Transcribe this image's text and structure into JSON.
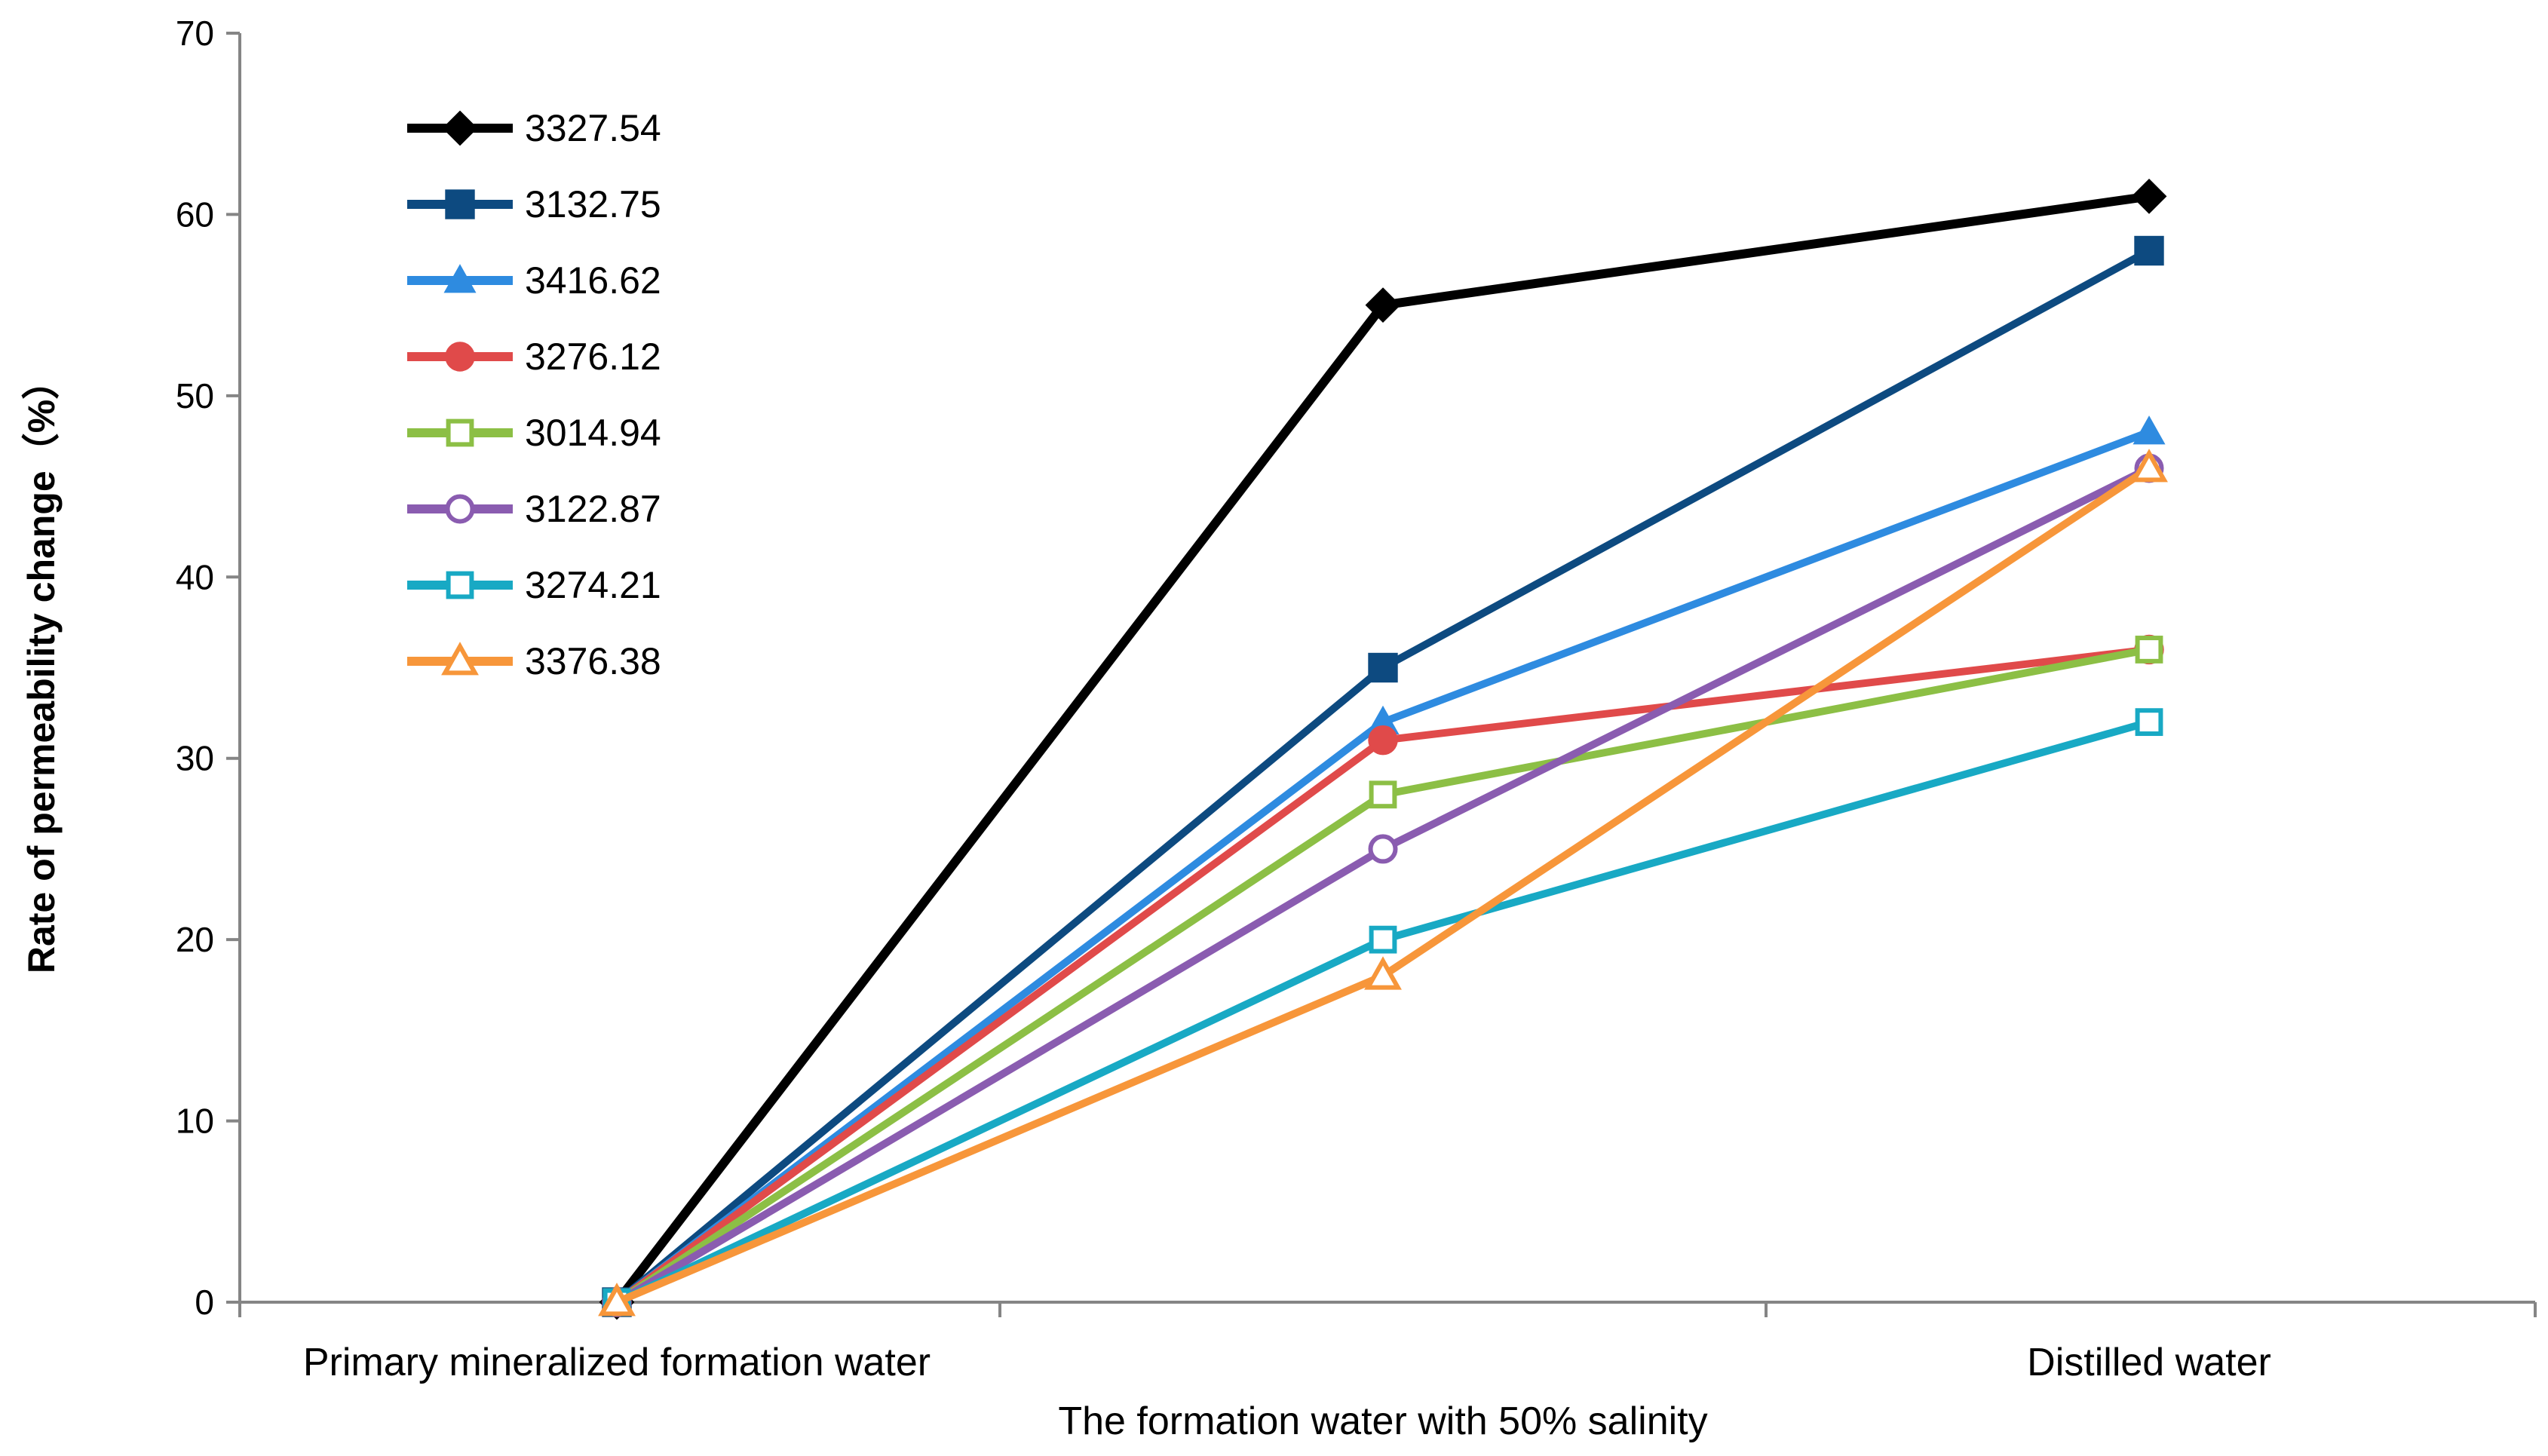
{
  "chart_data": {
    "type": "line",
    "title": "",
    "categories": [
      "Primary mineralized formation water",
      "The formation water with 50% salinity",
      "Distilled water"
    ],
    "xlabel": "The formation water with 50% salinity",
    "ylabel": "Rate of permeability change（%）",
    "ylim": [
      0,
      70
    ],
    "yticks": [
      "0",
      "10",
      "20",
      "30",
      "40",
      "50",
      "60",
      "70"
    ],
    "grid": false,
    "legend_position": "top-left",
    "series": [
      {
        "name": "3327.54",
        "values": [
          0,
          55,
          61
        ],
        "color": "#000000",
        "marker": "diamond"
      },
      {
        "name": "3132.75",
        "values": [
          0,
          35,
          58
        ],
        "color": "#0D4A80",
        "marker": "square"
      },
      {
        "name": "3416.62",
        "values": [
          0,
          32,
          48
        ],
        "color": "#2E8BE0",
        "marker": "triangle"
      },
      {
        "name": "3276.12",
        "values": [
          0,
          31,
          36
        ],
        "color": "#E04A4A",
        "marker": "circle"
      },
      {
        "name": "3014.94",
        "values": [
          0,
          28,
          36
        ],
        "color": "#8CBF45",
        "marker": "square-open"
      },
      {
        "name": "3122.87",
        "values": [
          0,
          25,
          46
        ],
        "color": "#8A5CB0",
        "marker": "circle-open"
      },
      {
        "name": "3274.21",
        "values": [
          0,
          20,
          32
        ],
        "color": "#18A9C4",
        "marker": "square-open"
      },
      {
        "name": "3376.38",
        "values": [
          0,
          18,
          46
        ],
        "color": "#F7963A",
        "marker": "triangle-open"
      }
    ]
  }
}
